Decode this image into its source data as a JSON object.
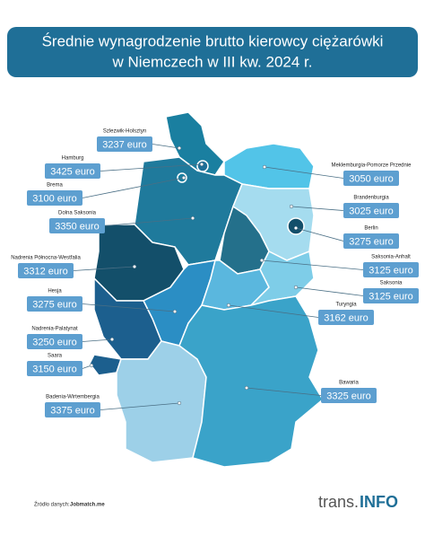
{
  "header": {
    "title_lines": [
      "Średnie wynagrodzenie brutto kierowcy ciężarówki",
      "w Niemczech w III kw. 2024 r."
    ]
  },
  "regions": [
    {
      "name": "Szlezwik-Holsztyn",
      "value": "3237 euro"
    },
    {
      "name": "Hamburg",
      "value": "3425 euro"
    },
    {
      "name": "Brema",
      "value": "3100 euro"
    },
    {
      "name": "Dolna Saksonia",
      "value": "3350 euro"
    },
    {
      "name": "Nadrenia Północna-Westfalia",
      "value": "3312 euro"
    },
    {
      "name": "Hesja",
      "value": "3275 euro"
    },
    {
      "name": "Nadrenia-Palatynat",
      "value": "3250 euro"
    },
    {
      "name": "Saara",
      "value": "3150 euro"
    },
    {
      "name": "Badenia-Wirtembergia",
      "value": "3375 euro"
    },
    {
      "name": "Meklemburgia-Pomorze Przednie",
      "value": "3050 euro"
    },
    {
      "name": "Brandenburgia",
      "value": "3025 euro"
    },
    {
      "name": "Berlin",
      "value": "3275 euro"
    },
    {
      "name": "Saksonia-Anhalt",
      "value": "3125 euro"
    },
    {
      "name": "Saksonia",
      "value": "3125 euro"
    },
    {
      "name": "Turyngia",
      "value": "3162 euro"
    },
    {
      "name": "Bawaria",
      "value": "3325 euro"
    }
  ],
  "footer": {
    "source_label": "Źródło danych:",
    "source": "Jobmatch.me",
    "logo_left": "trans.",
    "logo_right": "INFO"
  }
}
